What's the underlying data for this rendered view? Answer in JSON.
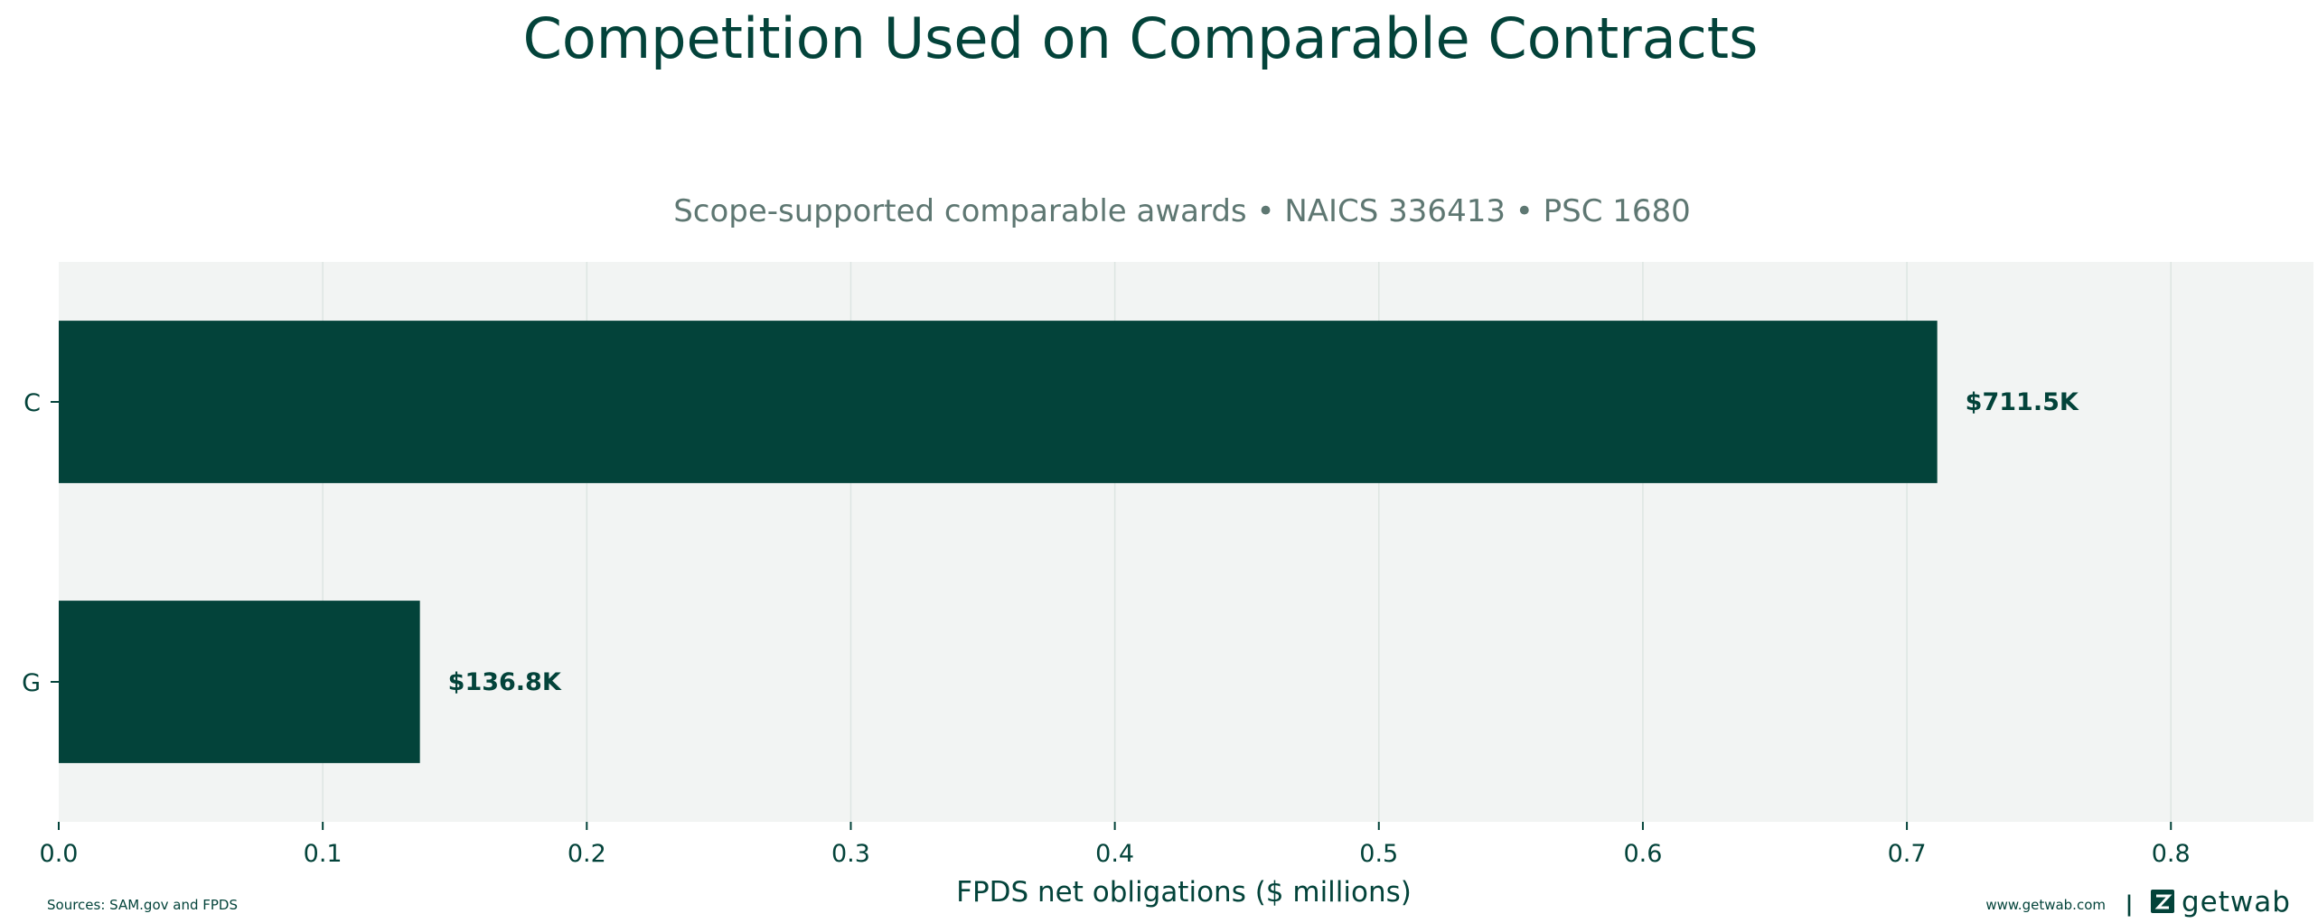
{
  "chart_data": {
    "type": "bar",
    "orientation": "horizontal",
    "title": "Competition Used on Comparable Contracts",
    "subtitle": "Scope-supported comparable awards • NAICS 336413 • PSC 1680",
    "xlabel": "FPDS net obligations ($ millions)",
    "ylabel": "",
    "categories": [
      "C",
      "G"
    ],
    "values": [
      0.7115,
      0.1368
    ],
    "data_labels": [
      "$711.5K",
      "$136.8K"
    ],
    "xlim": [
      0,
      0.854
    ],
    "xticks": [
      0.0,
      0.1,
      0.2,
      0.3,
      0.4,
      0.5,
      0.6,
      0.7,
      0.8
    ],
    "xtick_labels": [
      "0.0",
      "0.1",
      "0.2",
      "0.3",
      "0.4",
      "0.5",
      "0.6",
      "0.7",
      "0.8"
    ],
    "grid": "vertical",
    "colors": {
      "bar": "#03433a",
      "plot_background": "#f2f4f3",
      "grid": "#dde5e2",
      "text": "#03433a",
      "subtitle": "#5e7772"
    }
  },
  "footer": {
    "sources": "Sources: SAM.gov and FPDS",
    "website": "www.getwab.com",
    "separator": "|",
    "logo_text": "getwab",
    "logo_icon": "getwab-logo-icon"
  }
}
